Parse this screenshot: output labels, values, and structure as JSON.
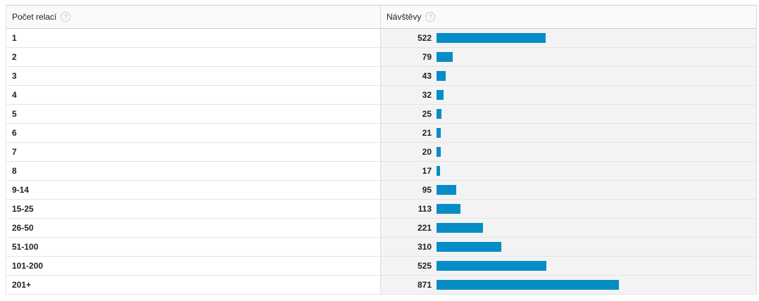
{
  "table": {
    "columns": [
      {
        "label": "Počet relací",
        "help": "?"
      },
      {
        "label": "Návštěvy",
        "help": "?"
      }
    ],
    "rows": [
      [
        "1",
        522
      ],
      [
        "2",
        79
      ],
      [
        "3",
        43
      ],
      [
        "4",
        32
      ],
      [
        "5",
        25
      ],
      [
        "6",
        21
      ],
      [
        "7",
        20
      ],
      [
        "8",
        17
      ],
      [
        "9-14",
        95
      ],
      [
        "15-25",
        113
      ],
      [
        "26-50",
        221
      ],
      [
        "51-100",
        310
      ],
      [
        "101-200",
        525
      ],
      [
        "201+",
        871
      ]
    ],
    "bar_color": "#058dc7"
  }
}
